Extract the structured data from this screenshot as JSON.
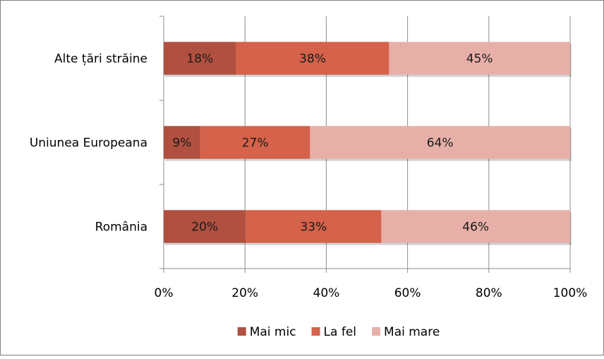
{
  "chart_data": {
    "type": "bar",
    "orientation": "horizontal",
    "stacked": "percent",
    "categories": [
      "Alte țări străine",
      "Uniunea Europeana",
      "România"
    ],
    "series": [
      {
        "name": "Mai mic",
        "values": [
          18,
          9,
          20
        ],
        "labels": [
          "18%",
          "9%",
          "20%"
        ],
        "color": "#b05040"
      },
      {
        "name": "La fel",
        "values": [
          38,
          27,
          33
        ],
        "labels": [
          "38%",
          "27%",
          "33%"
        ],
        "color": "#d5624a"
      },
      {
        "name": "Mai mare",
        "values": [
          45,
          64,
          46
        ],
        "labels": [
          "45%",
          "64%",
          "46%"
        ],
        "color": "#e6b0a8"
      }
    ],
    "xlim": [
      0,
      100
    ],
    "x_ticks": [
      "0%",
      "20%",
      "40%",
      "60%",
      "80%",
      "100%"
    ],
    "grid": "vertical",
    "legend_position": "bottom",
    "title": "",
    "xlabel": "",
    "ylabel": ""
  }
}
